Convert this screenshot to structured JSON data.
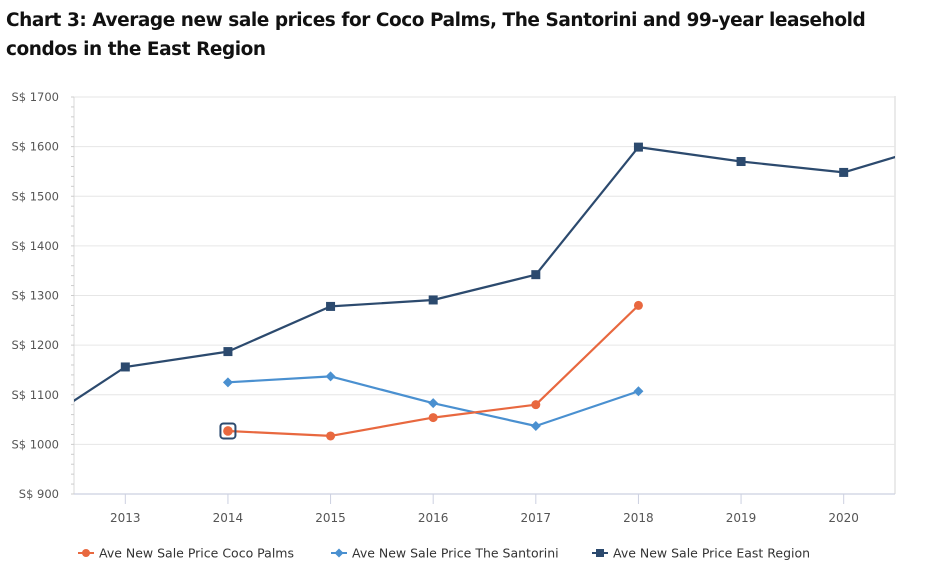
{
  "chart_data": {
    "type": "line",
    "title": "Chart 3: Average new sale prices for Coco Palms, The Santorini and 99-year leasehold condos in the East Region",
    "xlabel": "",
    "ylabel": "",
    "x": [
      2013,
      2014,
      2015,
      2016,
      2017,
      2018,
      2019,
      2020
    ],
    "x_tick_labels": [
      "2013",
      "2014",
      "2015",
      "2016",
      "2017",
      "2018",
      "2019",
      "2020"
    ],
    "xlim": [
      2012.5,
      2020.5
    ],
    "ylim": [
      900,
      1700
    ],
    "y_ticks": [
      900,
      1000,
      1100,
      1200,
      1300,
      1400,
      1500,
      1600,
      1700
    ],
    "y_tick_prefix": "S$ ",
    "grid": true,
    "legend_position": "bottom",
    "series": [
      {
        "name": "Ave New Sale Price Coco Palms",
        "color": "#e8683f",
        "marker": "circle",
        "points": [
          [
            2014,
            1027
          ],
          [
            2015,
            1017
          ],
          [
            2016,
            1054
          ],
          [
            2017,
            1080
          ],
          [
            2018,
            1280
          ]
        ]
      },
      {
        "name": "Ave New Sale Price The Santorini",
        "color": "#4a90d0",
        "marker": "diamond",
        "points": [
          [
            2014,
            1125
          ],
          [
            2015,
            1137
          ],
          [
            2016,
            1083
          ],
          [
            2017,
            1037
          ],
          [
            2018,
            1107
          ]
        ]
      },
      {
        "name": "Ave New Sale Price East Region",
        "color": "#2c4a6e",
        "marker": "square",
        "points": [
          [
            2012,
            1020
          ],
          [
            2013,
            1156
          ],
          [
            2014,
            1187
          ],
          [
            2015,
            1278
          ],
          [
            2016,
            1291
          ],
          [
            2017,
            1342
          ],
          [
            2018,
            1599
          ],
          [
            2019,
            1570
          ],
          [
            2020,
            1548
          ],
          [
            2021,
            1610
          ]
        ]
      }
    ],
    "highlighted_point": {
      "series": 0,
      "x": 2014
    }
  }
}
